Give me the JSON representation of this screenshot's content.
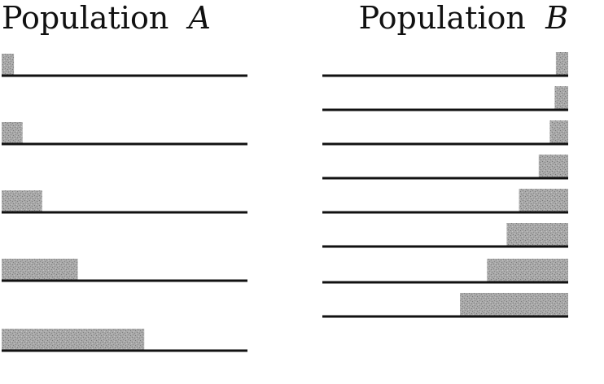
{
  "populations": [
    {
      "name": "Population",
      "letter": "A",
      "align": "left",
      "bars": [
        0.05,
        0.085,
        0.165,
        0.31,
        0.58
      ]
    },
    {
      "name": "Population",
      "letter": "B",
      "align": "right",
      "bars": [
        0.05,
        0.055,
        0.075,
        0.12,
        0.2,
        0.25,
        0.33,
        0.44
      ]
    }
  ],
  "colors": {
    "bar_fill": "#a9a9a9",
    "bar_texture": "#7a7a7a",
    "baseline": "#111111",
    "text": "#111111"
  }
}
